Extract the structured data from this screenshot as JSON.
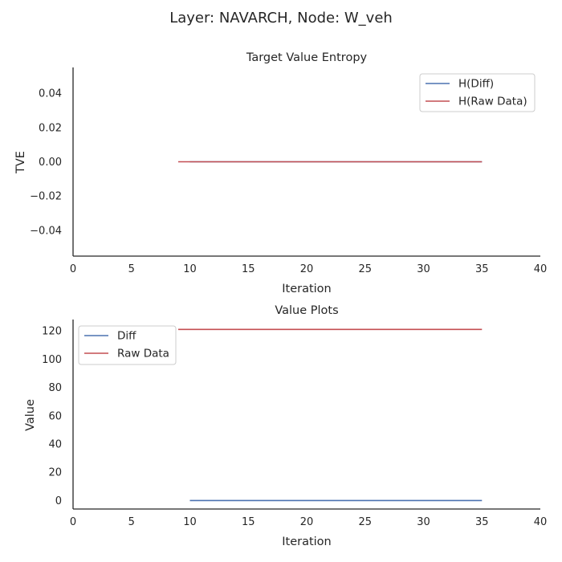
{
  "suptitle": "Layer: NAVARCH, Node: W_veh",
  "chart_data": [
    {
      "type": "line",
      "title": "Target Value Entropy",
      "xlabel": "Iteration",
      "ylabel": "TVE",
      "xlim": [
        0,
        40
      ],
      "ylim": [
        -0.055,
        0.055
      ],
      "xticks": [
        0,
        5,
        10,
        15,
        20,
        25,
        30,
        35,
        40
      ],
      "xtick_labels": [
        "0",
        "5",
        "10",
        "15",
        "20",
        "25",
        "30",
        "35",
        "40"
      ],
      "yticks": [
        -0.04,
        -0.02,
        0.0,
        0.02,
        0.04
      ],
      "ytick_labels": [
        "−0.04",
        "−0.02",
        "0.00",
        "0.02",
        "0.04"
      ],
      "grid": false,
      "legend": "top-right",
      "series": [
        {
          "name": "H(Diff)",
          "color": "#4c72b0",
          "x": [
            10,
            35
          ],
          "y": [
            0.0,
            0.0
          ]
        },
        {
          "name": "H(Raw Data)",
          "color": "#c44e52",
          "x": [
            9,
            35
          ],
          "y": [
            0.0,
            0.0
          ]
        }
      ]
    },
    {
      "type": "line",
      "title": "Value Plots",
      "xlabel": "Iteration",
      "ylabel": "Value",
      "xlim": [
        0,
        40
      ],
      "ylim": [
        -6,
        128
      ],
      "xticks": [
        0,
        5,
        10,
        15,
        20,
        25,
        30,
        35,
        40
      ],
      "xtick_labels": [
        "0",
        "5",
        "10",
        "15",
        "20",
        "25",
        "30",
        "35",
        "40"
      ],
      "yticks": [
        0,
        20,
        40,
        60,
        80,
        100,
        120
      ],
      "ytick_labels": [
        "0",
        "20",
        "40",
        "60",
        "80",
        "100",
        "120"
      ],
      "grid": false,
      "legend": "top-left",
      "series": [
        {
          "name": "Diff",
          "color": "#4c72b0",
          "x": [
            10,
            35
          ],
          "y": [
            0,
            0
          ]
        },
        {
          "name": "Raw Data",
          "color": "#c44e52",
          "x": [
            9,
            35
          ],
          "y": [
            121,
            121
          ]
        }
      ]
    }
  ]
}
